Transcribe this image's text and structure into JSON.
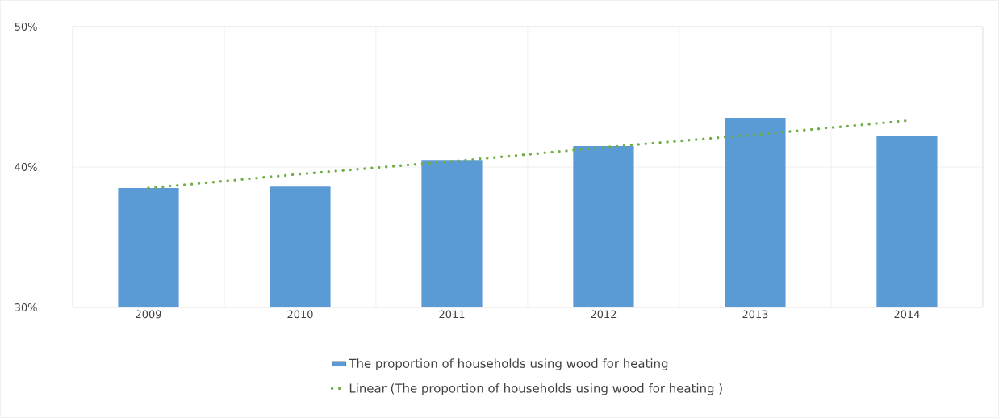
{
  "chart_data": {
    "type": "bar",
    "categories": [
      "2009",
      "2010",
      "2011",
      "2012",
      "2013",
      "2014"
    ],
    "series": [
      {
        "name": "The proportion of households using wood for heating",
        "color": "#5b9bd5",
        "values": [
          38.5,
          38.6,
          40.5,
          41.5,
          43.5,
          42.2
        ]
      },
      {
        "name": "Linear (The proportion of households using wood for heating )",
        "type": "line",
        "color": "#70ad47",
        "line_style": "dotted",
        "values": [
          38.5,
          39.5,
          40.4,
          41.4,
          42.3,
          43.3
        ]
      }
    ],
    "ylim": [
      30,
      50
    ],
    "yticks": [
      {
        "value": 30,
        "label": "30%"
      },
      {
        "value": 40,
        "label": "40%"
      },
      {
        "value": 50,
        "label": "50%"
      }
    ],
    "grid": true,
    "legend": "bottom"
  }
}
